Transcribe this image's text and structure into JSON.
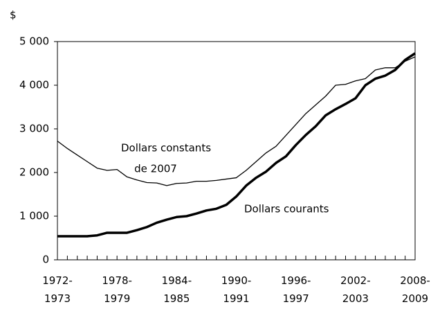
{
  "chart_data": {
    "type": "line",
    "y_label": "$",
    "categories": [
      "1972-1973",
      null,
      null,
      null,
      null,
      null,
      "1978-1979",
      null,
      null,
      null,
      null,
      null,
      "1984-1985",
      null,
      null,
      null,
      null,
      null,
      "1990-1991",
      null,
      null,
      null,
      null,
      null,
      "1996-1997",
      null,
      null,
      null,
      null,
      null,
      "2002-2003",
      null,
      null,
      null,
      null,
      null,
      "2008-2009"
    ],
    "series": [
      {
        "name": "Dollars constants de 2007",
        "color": "#000000",
        "values": [
          2720,
          2550,
          2400,
          2250,
          2100,
          2050,
          2070,
          1900,
          1830,
          1770,
          1760,
          1700,
          1750,
          1760,
          1800,
          1800,
          1820,
          1850,
          1880,
          2050,
          2250,
          2450,
          2600,
          2850,
          3100,
          3350,
          3550,
          3750,
          4000,
          4020,
          4100,
          4150,
          4350,
          4400,
          4400,
          4550,
          4650
        ]
      },
      {
        "name": "Dollars courants",
        "color": "#000000",
        "values": [
          540,
          540,
          540,
          540,
          560,
          620,
          620,
          620,
          680,
          750,
          850,
          920,
          980,
          1000,
          1060,
          1130,
          1170,
          1260,
          1450,
          1700,
          1880,
          2020,
          2220,
          2370,
          2630,
          2860,
          3060,
          3310,
          3450,
          3570,
          3700,
          4000,
          4150,
          4220,
          4350,
          4580,
          4730
        ]
      }
    ],
    "annotations": [
      "Dollars constants",
      "de 2007",
      "Dollars courants"
    ],
    "ylim": [
      0,
      5000
    ],
    "yticks": [
      0,
      {
        "value": 1000,
        "label": "1 000"
      },
      {
        "value": 2000,
        "label": "2 000"
      },
      {
        "value": 3000,
        "label": "3 000"
      },
      {
        "value": 4000,
        "label": "4 000"
      },
      {
        "value": 5000,
        "label": "5 000"
      }
    ],
    "grid": false
  }
}
